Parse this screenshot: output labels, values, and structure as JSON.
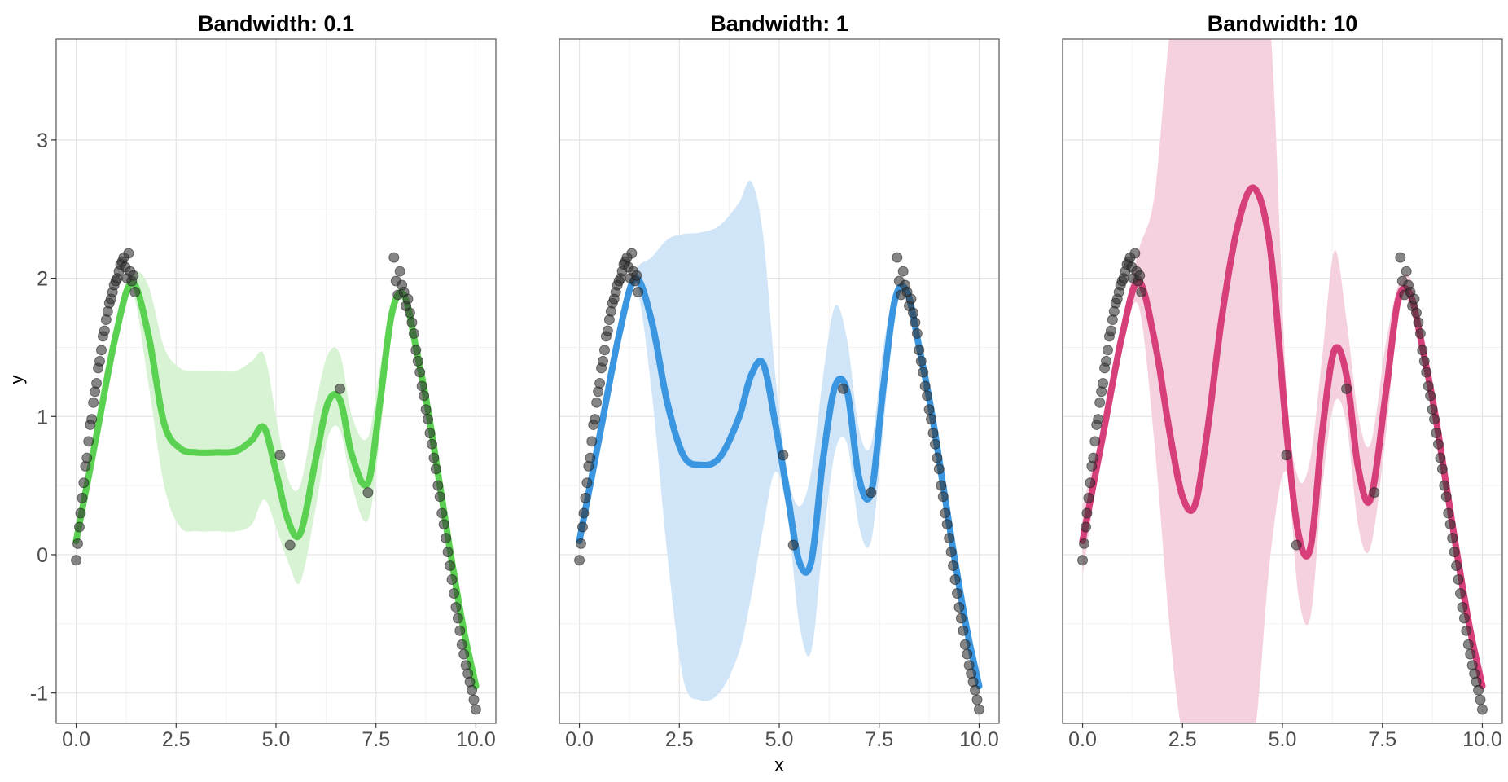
{
  "chart_data": {
    "type": "line",
    "xlabel": "x",
    "ylabel": "y",
    "xlim": [
      -0.5,
      10.5
    ],
    "ylim": [
      -1.22,
      3.73
    ],
    "x_ticks": [
      0,
      2.5,
      5,
      7.5,
      10
    ],
    "x_tick_labels": [
      "0.0",
      "2.5",
      "5.0",
      "7.5",
      "10.0"
    ],
    "y_ticks": [
      -1,
      0,
      1,
      2,
      3
    ],
    "y_tick_labels": [
      "-1",
      "0",
      "1",
      "2",
      "3"
    ],
    "grid": true,
    "legend": "none",
    "points": {
      "color": "#333333",
      "x": [
        0.0,
        0.04,
        0.08,
        0.11,
        0.15,
        0.19,
        0.23,
        0.27,
        0.31,
        0.35,
        0.39,
        0.43,
        0.47,
        0.51,
        0.55,
        0.59,
        0.63,
        0.67,
        0.71,
        0.75,
        0.79,
        0.83,
        0.87,
        0.91,
        0.95,
        0.99,
        1.03,
        1.07,
        1.11,
        1.15,
        1.19,
        1.23,
        1.27,
        1.31,
        1.35,
        1.39,
        1.43,
        1.47,
        5.1,
        5.35,
        6.6,
        7.3,
        7.95,
        8.0,
        8.05,
        8.1,
        8.15,
        8.2,
        8.25,
        8.3,
        8.35,
        8.4,
        8.45,
        8.5,
        8.55,
        8.6,
        8.65,
        8.7,
        8.75,
        8.8,
        8.85,
        8.9,
        8.95,
        9.0,
        9.05,
        9.1,
        9.15,
        9.2,
        9.25,
        9.3,
        9.35,
        9.4,
        9.45,
        9.5,
        9.55,
        9.6,
        9.65,
        9.7,
        9.75,
        9.8,
        9.85,
        9.9,
        9.95,
        10.0
      ],
      "y": [
        -0.04,
        0.08,
        0.2,
        0.3,
        0.41,
        0.52,
        0.64,
        0.7,
        0.82,
        0.94,
        0.98,
        1.1,
        1.18,
        1.24,
        1.35,
        1.4,
        1.48,
        1.58,
        1.62,
        1.7,
        1.76,
        1.82,
        1.85,
        1.9,
        1.95,
        1.98,
        2.0,
        2.05,
        2.1,
        2.12,
        2.15,
        2.08,
        2.0,
        2.18,
        2.05,
        1.98,
        2.02,
        1.9,
        0.72,
        0.07,
        1.2,
        0.45,
        2.15,
        1.98,
        1.88,
        2.05,
        1.95,
        1.9,
        1.8,
        1.85,
        1.75,
        1.68,
        1.6,
        1.48,
        1.4,
        1.32,
        1.22,
        1.15,
        1.05,
        0.98,
        0.88,
        0.8,
        0.7,
        0.62,
        0.5,
        0.42,
        0.3,
        0.22,
        0.12,
        0.02,
        -0.08,
        -0.18,
        -0.28,
        -0.38,
        -0.46,
        -0.55,
        -0.65,
        -0.72,
        -0.8,
        -0.86,
        -0.92,
        -0.98,
        -1.05,
        -1.12
      ]
    },
    "panels": [
      {
        "title": "Bandwidth: 0.1",
        "color": "#5ad150",
        "band_color": "#d7f3d3",
        "x": [
          0,
          0.5,
          1,
          1.4,
          1.8,
          2.2,
          2.6,
          3,
          3.5,
          4,
          4.4,
          4.7,
          5,
          5.3,
          5.6,
          6,
          6.3,
          6.6,
          6.9,
          7.3,
          7.6,
          7.9,
          8.2,
          8.5,
          8.8,
          9.1,
          9.4,
          9.7,
          10
        ],
        "y": [
          0.1,
          0.85,
          1.6,
          1.97,
          1.6,
          0.95,
          0.77,
          0.74,
          0.74,
          0.75,
          0.83,
          0.92,
          0.6,
          0.25,
          0.15,
          0.7,
          1.1,
          1.12,
          0.72,
          0.52,
          1.1,
          1.75,
          1.88,
          1.5,
          1.05,
          0.5,
          -0.05,
          -0.55,
          -0.95
        ],
        "lower": [
          0.05,
          0.8,
          1.55,
          1.9,
          1.25,
          0.5,
          0.2,
          0.17,
          0.17,
          0.17,
          0.22,
          0.4,
          0.2,
          -0.05,
          -0.2,
          0.35,
          0.85,
          0.9,
          0.5,
          0.25,
          0.85,
          1.7,
          1.83,
          1.45,
          1.0,
          0.45,
          -0.1,
          -0.6,
          -1.0
        ],
        "upper": [
          0.15,
          0.9,
          1.65,
          2.03,
          1.95,
          1.5,
          1.35,
          1.33,
          1.33,
          1.33,
          1.4,
          1.45,
          1.0,
          0.55,
          0.5,
          1.1,
          1.45,
          1.45,
          1.0,
          0.85,
          1.35,
          1.8,
          1.93,
          1.55,
          1.1,
          0.55,
          0.0,
          -0.5,
          -0.9
        ]
      },
      {
        "title": "Bandwidth: 1",
        "color": "#3a96e0",
        "band_color": "#d0e5f8",
        "x": [
          0,
          0.5,
          1,
          1.4,
          1.8,
          2.2,
          2.6,
          3,
          3.5,
          4,
          4.3,
          4.6,
          4.9,
          5.2,
          5.5,
          5.8,
          6.1,
          6.4,
          6.7,
          7,
          7.3,
          7.6,
          7.9,
          8.2,
          8.5,
          8.8,
          9.1,
          9.4,
          9.7,
          10
        ],
        "y": [
          0.1,
          0.85,
          1.6,
          2.0,
          1.7,
          1.1,
          0.72,
          0.65,
          0.7,
          1.0,
          1.3,
          1.38,
          0.95,
          0.45,
          -0.05,
          -0.05,
          0.7,
          1.22,
          1.18,
          0.55,
          0.45,
          1.2,
          1.85,
          1.9,
          1.5,
          1.05,
          0.5,
          -0.05,
          -0.55,
          -0.95
        ],
        "lower": [
          0.05,
          0.8,
          1.55,
          1.95,
          1.2,
          0.0,
          -0.9,
          -1.05,
          -1.0,
          -0.7,
          -0.3,
          0.2,
          0.6,
          0.3,
          -0.5,
          -0.7,
          0.1,
          0.75,
          0.8,
          0.2,
          0.1,
          0.9,
          1.8,
          1.85,
          1.45,
          1.0,
          0.45,
          -0.1,
          -0.6,
          -1.0
        ],
        "upper": [
          0.15,
          0.9,
          1.65,
          2.05,
          2.15,
          2.28,
          2.32,
          2.33,
          2.38,
          2.55,
          2.7,
          2.3,
          1.3,
          0.6,
          0.35,
          0.6,
          1.3,
          1.8,
          1.55,
          0.9,
          0.8,
          1.5,
          1.9,
          1.95,
          1.55,
          1.1,
          0.55,
          0.0,
          -0.5,
          -0.9
        ]
      },
      {
        "title": "Bandwidth: 10",
        "color": "#d63f79",
        "band_color": "#f5d0de",
        "x": [
          0,
          0.5,
          1,
          1.4,
          1.8,
          2.2,
          2.5,
          2.8,
          3.1,
          3.5,
          3.9,
          4.3,
          4.7,
          5.1,
          5.4,
          5.7,
          6.0,
          6.3,
          6.6,
          6.9,
          7.2,
          7.6,
          7.9,
          8.2,
          8.5,
          8.8,
          9.1,
          9.4,
          9.7,
          10
        ],
        "y": [
          0.1,
          0.85,
          1.6,
          1.98,
          1.55,
          0.85,
          0.42,
          0.35,
          0.85,
          1.75,
          2.4,
          2.65,
          2.2,
          0.9,
          0.15,
          0.05,
          0.9,
          1.48,
          1.3,
          0.62,
          0.4,
          1.2,
          1.85,
          1.88,
          1.5,
          1.05,
          0.5,
          -0.05,
          -0.55,
          -0.95
        ],
        "lower": [
          -0.15,
          0.8,
          1.5,
          1.8,
          0.8,
          -0.6,
          -1.3,
          -1.3,
          -1.3,
          -1.3,
          -1.3,
          -1.3,
          0.0,
          0.6,
          -0.3,
          -0.45,
          0.5,
          1.1,
          0.95,
          0.2,
          0.05,
          0.9,
          1.75,
          1.8,
          1.45,
          1.0,
          0.45,
          -0.1,
          -0.6,
          -1.0
        ],
        "upper": [
          0.35,
          0.95,
          1.7,
          2.2,
          2.6,
          3.8,
          3.8,
          3.8,
          3.8,
          3.8,
          3.8,
          3.8,
          3.8,
          1.2,
          0.55,
          0.7,
          1.45,
          2.2,
          1.7,
          1.0,
          0.8,
          1.55,
          1.95,
          2.0,
          1.55,
          1.1,
          0.55,
          0.0,
          -0.5,
          -0.9
        ]
      }
    ]
  }
}
